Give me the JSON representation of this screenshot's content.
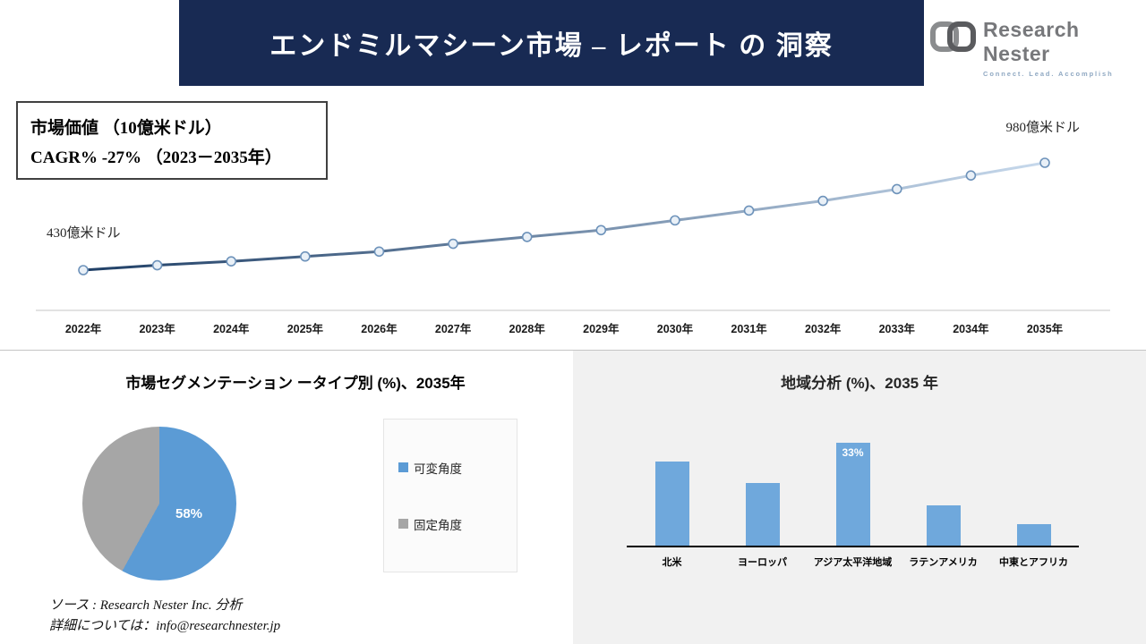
{
  "header": {
    "title": "エンドミルマシーン市場 – レポート の 洞察",
    "logo_text": "Research Nester",
    "logo_tagline": "Connect. Lead. Accomplish"
  },
  "kpi_box": {
    "line1": "市場価値 （10億米ドル）",
    "line2": "CAGR% -27% （2023－2035年）"
  },
  "chart_data": [
    {
      "type": "line",
      "title": "市場価値 （10億米ドル）",
      "categories": [
        "2022年",
        "2023年",
        "2024年",
        "2025年",
        "2026年",
        "2027年",
        "2028年",
        "2029年",
        "2030年",
        "2031年",
        "2032年",
        "2033年",
        "2034年",
        "2035年"
      ],
      "values": [
        430,
        455,
        475,
        500,
        525,
        565,
        600,
        635,
        685,
        735,
        785,
        845,
        915,
        980
      ],
      "ylim": [
        430,
        980
      ],
      "start_label": "430億米ドル",
      "end_label": "980億米ドル",
      "line_color_start": "#1f3f66",
      "line_color_end": "#c7d9ec",
      "grid": "off",
      "axis_color": "#d9d9d9"
    },
    {
      "type": "pie",
      "title": "市場セグメンテーション ータイプ別 (%)、2035年",
      "slices": [
        {
          "label": "可変角度",
          "value": 58,
          "color": "#5b9bd5",
          "value_label": "58%"
        },
        {
          "label": "固定角度",
          "value": 42,
          "color": "#a6a6a6",
          "value_label": ""
        }
      ],
      "legend_position": "right"
    },
    {
      "type": "bar",
      "title": "地域分析 (%)、2035 年",
      "categories": [
        "北米",
        "ヨーロッパ",
        "アジア太平洋地域",
        "ラテンアメリカ",
        "中東とアフリカ"
      ],
      "values": [
        27,
        20,
        33,
        13,
        7
      ],
      "bar_labels": [
        "",
        "",
        "33%",
        "",
        ""
      ],
      "bar_color": "#6fa8dc",
      "ylim": [
        0,
        38
      ]
    }
  ],
  "footer": {
    "source": "ソース : Research Nester Inc. 分析",
    "contact": "詳細については：info@researchnester.jp"
  },
  "colors": {
    "banner_bg": "#182a53",
    "panel_bg": "#f1f1f1",
    "accent_blue": "#5b9bd5",
    "neutral_gray": "#a6a6a6"
  }
}
